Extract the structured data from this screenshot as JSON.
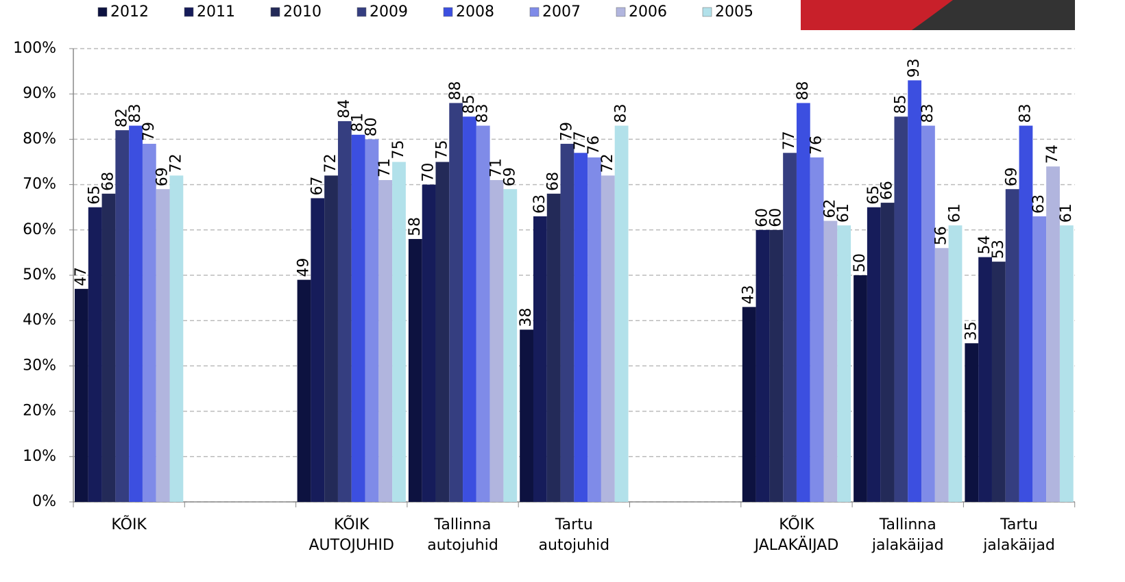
{
  "chart_data": {
    "type": "bar",
    "categories": [
      "KÕIK",
      null,
      "KÕIK AUTOJUHID",
      "Tallinna autojuhid",
      "Tartu autojuhid",
      null,
      "KÕIK JALAKÄIJAD",
      "Tallinna jalakäijad",
      "Tartu jalakäijad"
    ],
    "series": [
      {
        "name": "2012",
        "color": "#0d1240",
        "values": [
          47,
          null,
          49,
          58,
          38,
          null,
          43,
          50,
          35
        ]
      },
      {
        "name": "2011",
        "color": "#161c5a",
        "values": [
          65,
          null,
          67,
          70,
          63,
          null,
          60,
          65,
          54
        ]
      },
      {
        "name": "2010",
        "color": "#232a58",
        "values": [
          68,
          null,
          72,
          75,
          68,
          null,
          60,
          66,
          53
        ]
      },
      {
        "name": "2009",
        "color": "#353e80",
        "values": [
          82,
          null,
          84,
          88,
          79,
          null,
          77,
          85,
          69
        ]
      },
      {
        "name": "2008",
        "color": "#3c4fe0",
        "values": [
          83,
          null,
          81,
          85,
          77,
          null,
          88,
          93,
          83
        ]
      },
      {
        "name": "2007",
        "color": "#7f8be8",
        "values": [
          79,
          null,
          80,
          83,
          76,
          null,
          76,
          83,
          63
        ]
      },
      {
        "name": "2006",
        "color": "#b1b5de",
        "values": [
          69,
          null,
          71,
          71,
          72,
          null,
          62,
          56,
          74
        ]
      },
      {
        "name": "2005",
        "color": "#b2e1ea",
        "values": [
          72,
          null,
          75,
          69,
          83,
          null,
          61,
          61,
          61
        ]
      }
    ],
    "ylim": [
      0,
      100
    ],
    "yticks": [
      {
        "value": 0,
        "label": "0%"
      },
      {
        "value": 10,
        "label": "10%"
      },
      {
        "value": 20,
        "label": "20%"
      },
      {
        "value": 30,
        "label": "30%"
      },
      {
        "value": 40,
        "label": "40%"
      },
      {
        "value": 50,
        "label": "50%"
      },
      {
        "value": 60,
        "label": "60%"
      },
      {
        "value": 70,
        "label": "70%"
      },
      {
        "value": 80,
        "label": "80%"
      },
      {
        "value": 90,
        "label": "90%"
      },
      {
        "value": 100,
        "label": "100%"
      }
    ],
    "grid": true
  }
}
